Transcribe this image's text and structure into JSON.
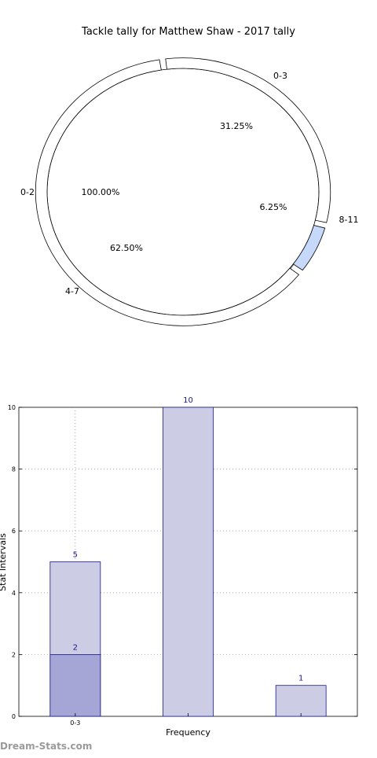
{
  "chart_data": [
    {
      "type": "pie",
      "title": "Tackle tally for Matthew Shaw - 2017 tally",
      "outer_ring": {
        "slices": [
          {
            "label": "0-3",
            "pct_text": "31.25%",
            "value": 31.25,
            "color": "#ffffff"
          },
          {
            "label": "8-11",
            "pct_text": "6.25%",
            "value": 6.25,
            "color": "#c6d9fb"
          },
          {
            "label": "4-7",
            "pct_text": "62.50%",
            "value": 62.5,
            "color": "#ffffff"
          }
        ]
      },
      "inner_ring": {
        "slices": [
          {
            "label": "0-2",
            "pct_text": "100.00%",
            "value": 100,
            "color": "#ffffff"
          }
        ]
      }
    },
    {
      "type": "bar",
      "xlabel": "Frequency",
      "ylabel": "Stat Intervals",
      "ylim": [
        0,
        10
      ],
      "yticks": [
        "0",
        "2",
        "4",
        "6",
        "8",
        "10"
      ],
      "grid": true,
      "categories": [
        "0-3",
        "",
        ""
      ],
      "series": [
        {
          "values": [
            5,
            10,
            1
          ],
          "labels": [
            "5",
            "10",
            "1"
          ],
          "color": "#ccccE4"
        },
        {
          "values": [
            2,
            null,
            null
          ],
          "labels": [
            "2",
            "",
            ""
          ],
          "color": "#a6a6d6"
        }
      ]
    }
  ],
  "watermark": "Dream-Stats.com"
}
